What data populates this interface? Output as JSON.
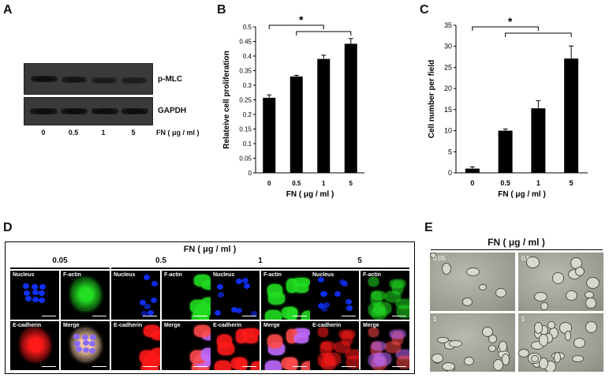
{
  "panels": {
    "A": "A",
    "B": "B",
    "C": "C",
    "D": "D",
    "E": "E"
  },
  "panel_a": {
    "bands": [
      "p-MLC",
      "GAPDH"
    ],
    "lanes": [
      "0",
      "0.5",
      "1",
      "5"
    ],
    "xlabel": "FN ( μg / ml )"
  },
  "chart_data": [
    {
      "type": "bar",
      "panel": "B",
      "categories": [
        "0",
        "0.5",
        "1",
        "5"
      ],
      "values": [
        0.257,
        0.33,
        0.39,
        0.442
      ],
      "errors": [
        0.01,
        0.004,
        0.013,
        0.018
      ],
      "xlabel": "FN ( μg / ml )",
      "ylabel": "Relateive cell proliferation",
      "ylim": [
        0,
        0.5
      ],
      "yticks": [
        "0",
        "0.05",
        "0.1",
        "0.15",
        "0.2",
        "0.25",
        "0.3",
        "0.35",
        "0.4",
        "0.45",
        "0.5"
      ],
      "significance": "*"
    },
    {
      "type": "bar",
      "panel": "C",
      "categories": [
        "0",
        "0.5",
        "1",
        "5"
      ],
      "values": [
        1,
        10,
        15.3,
        27.1
      ],
      "errors": [
        0.4,
        0.4,
        1.8,
        3.0
      ],
      "xlabel": "FN ( μg / ml )",
      "ylabel": "Cell number per field",
      "ylim": [
        0,
        35
      ],
      "yticks": [
        "0",
        "5",
        "10",
        "15",
        "20",
        "25",
        "30",
        "35"
      ],
      "significance": "*"
    }
  ],
  "panel_d": {
    "title": "FN ( μg / ml )",
    "groups": [
      "0.05",
      "0.5",
      "1",
      "5"
    ],
    "channels": [
      "Nucleus",
      "F-actin",
      "E-cadherin",
      "Merge"
    ],
    "colors": {
      "nucleus": "#1030ff",
      "factin": "#22dd22",
      "ecad": "#ff1a1a"
    }
  },
  "panel_e": {
    "title": "FN ( μg / ml )",
    "groups": [
      "0.05",
      "0.5",
      "1",
      "5"
    ]
  }
}
